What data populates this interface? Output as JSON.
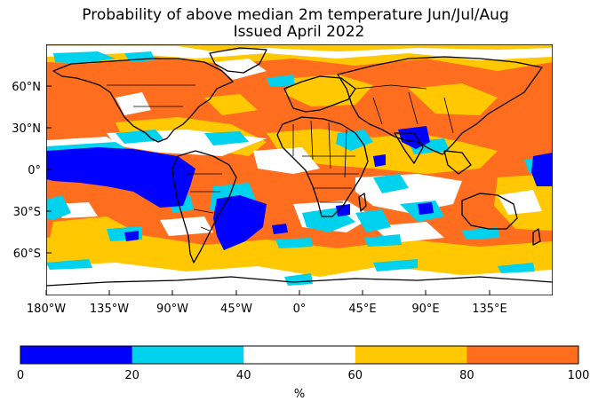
{
  "title": {
    "line1": "Probability of above median 2m temperature Jun/Jul/Aug",
    "line2": "Issued April 2022"
  },
  "map": {
    "projection": "plate carree",
    "lat_ticks": [
      "60°N",
      "30°N",
      "0°",
      "30°S",
      "60°S"
    ],
    "lon_ticks": [
      "180°W",
      "135°W",
      "90°W",
      "45°W",
      "0°",
      "45°E",
      "90°E",
      "135°E"
    ]
  },
  "colorbar": {
    "unit_label": "%",
    "tick_labels": [
      "0",
      "20",
      "40",
      "60",
      "80",
      "100"
    ],
    "bins": [
      {
        "range": "0-20",
        "color": "#0000ff"
      },
      {
        "range": "20-40",
        "color": "#00d2ee"
      },
      {
        "range": "40-60",
        "color": "#ffffff"
      },
      {
        "range": "60-80",
        "color": "#ffc800"
      },
      {
        "range": "80-100",
        "color": "#ff6e1e"
      }
    ]
  }
}
